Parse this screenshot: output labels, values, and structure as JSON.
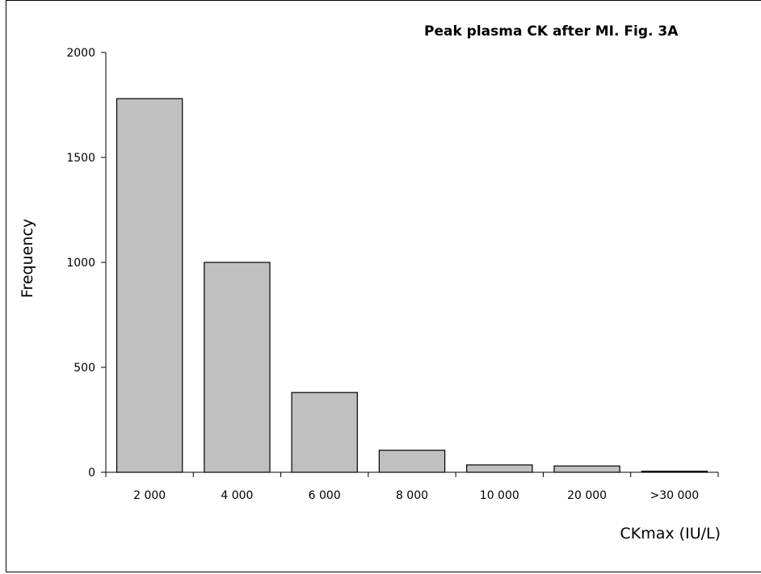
{
  "chart_data": {
    "type": "bar",
    "title": "Peak plasma CK after MI. Fig. 3A",
    "xlabel": "CKmax (IU/L)",
    "ylabel": "Frequency",
    "categories": [
      "2 000",
      "4 000",
      "6 000",
      "8 000",
      "10 000",
      "20 000",
      ">30 000"
    ],
    "values": [
      1780,
      1000,
      380,
      105,
      35,
      30,
      5
    ],
    "ylim": [
      0,
      2000
    ],
    "yticks": [
      0,
      500,
      1000,
      1500,
      2000
    ],
    "grid": false,
    "legend": "none",
    "bar_color": "#c0c0c0",
    "bar_edge_color": "#000000"
  }
}
